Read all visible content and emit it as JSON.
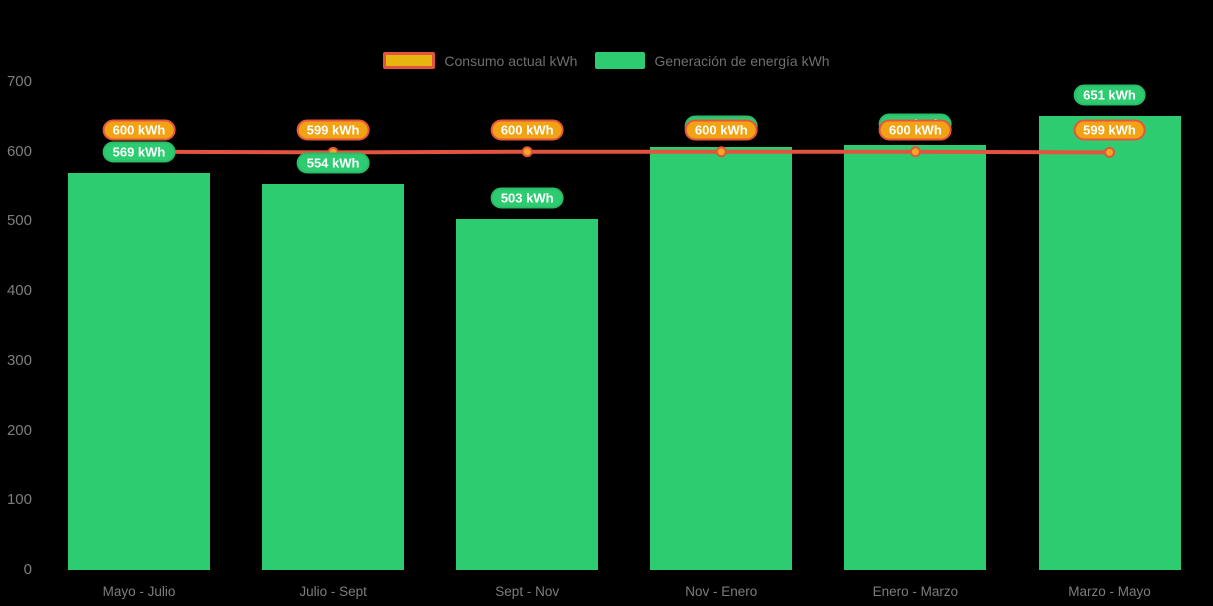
{
  "chart_data": {
    "type": "bar",
    "title": "",
    "categories": [
      "Mayo - Julio",
      "Julio - Sept",
      "Sept - Nov",
      "Nov - Enero",
      "Enero - Marzo",
      "Marzo - Mayo"
    ],
    "series": [
      {
        "name": "Consumo actual kWh",
        "type": "line",
        "values": [
          600,
          599,
          600,
          600,
          600,
          599
        ],
        "unit": "kWh",
        "color": "#e2543d",
        "marker_fill": "#f5a623",
        "label_fill": "#f2a313",
        "label_border": "#e8553e"
      },
      {
        "name": "Generación de energía kWh",
        "type": "bar",
        "values": [
          569,
          554,
          503,
          607,
          610,
          651
        ],
        "unit": "kWh",
        "color": "#2ecc71",
        "label_fill": "#2ecc71",
        "label_border": "#2abd68"
      }
    ],
    "ylim": [
      0,
      700
    ],
    "yticks": [
      0,
      100,
      200,
      300,
      400,
      500,
      600,
      700
    ],
    "grid": false,
    "legend_position": "top",
    "background": "#000000",
    "axis_text_color": "#7d7d7d",
    "legend_text_color": "#6f6f6f"
  }
}
